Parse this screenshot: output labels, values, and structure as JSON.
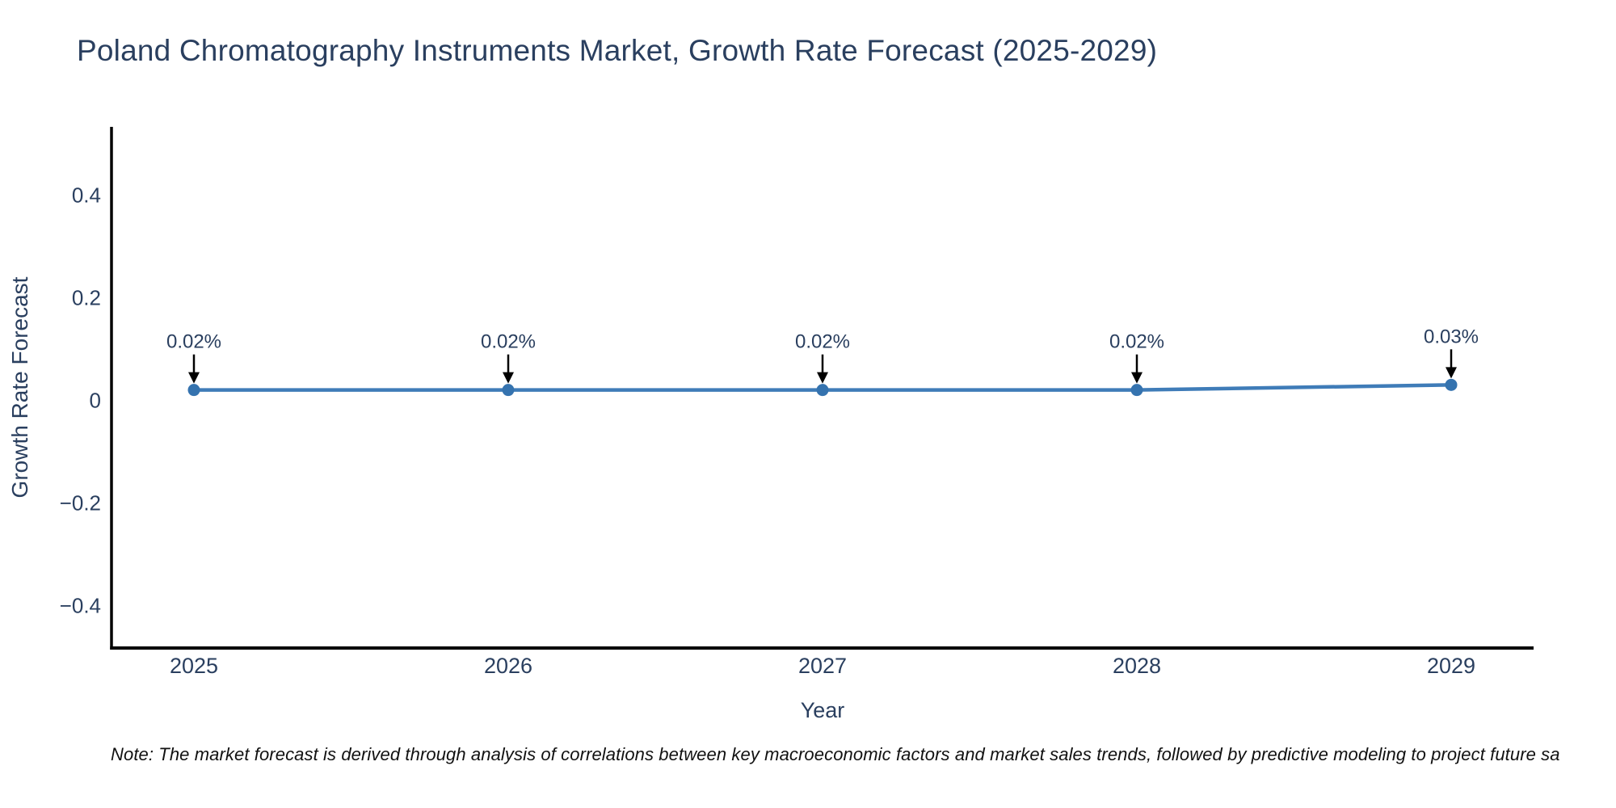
{
  "title": "Poland Chromatography Instruments Market, Growth Rate Forecast (2025-2029)",
  "note": "Note: The market forecast is derived through analysis of correlations between key macroeconomic factors and market sales trends, followed by predictive modeling to project future sa",
  "chart_data": {
    "type": "line",
    "title": "Poland Chromatography Instruments Market, Growth Rate Forecast (2025-2029)",
    "xlabel": "Year",
    "ylabel": "Growth Rate Forecast",
    "categories": [
      "2025",
      "2026",
      "2027",
      "2028",
      "2029"
    ],
    "series": [
      {
        "name": "Growth Rate Forecast",
        "values": [
          0.02,
          0.02,
          0.02,
          0.02,
          0.03
        ]
      }
    ],
    "point_labels": [
      "0.02%",
      "0.02%",
      "0.02%",
      "0.02%",
      "0.03%"
    ],
    "ytick_labels": [
      "0.4",
      "0.2",
      "0",
      "−0.2",
      "−0.4"
    ],
    "ytick_values": [
      0.4,
      0.2,
      0,
      -0.2,
      -0.4
    ],
    "ylim": [
      -0.483,
      0.533
    ],
    "grid": false,
    "legend": "none",
    "colors": {
      "line": "#3f7cb8",
      "marker": "#3573af",
      "axis": "#000000",
      "tick_text": "#2a3f5f",
      "annotation_text": "#2a3f5f",
      "arrow": "#000000",
      "background": "#ffffff"
    }
  }
}
